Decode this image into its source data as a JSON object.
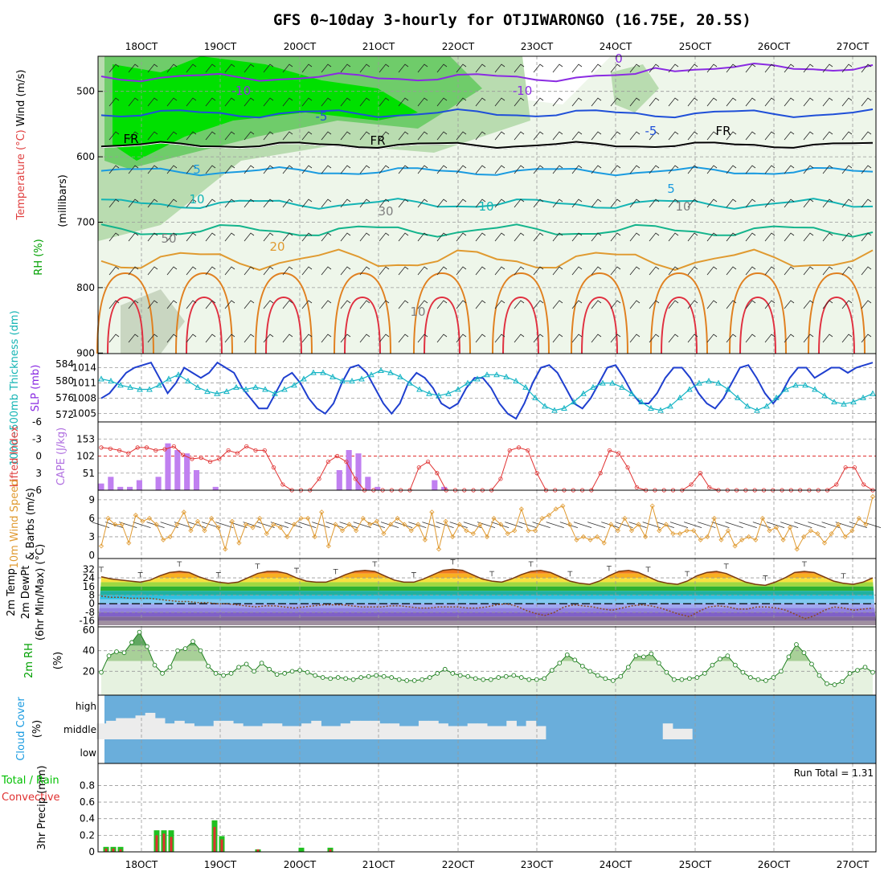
{
  "title": "GFS 0~10day 3-hourly for OTJIWARONGO (16.75E, 20.5S)",
  "x_dates": [
    "18OCT",
    "19OCT",
    "20OCT",
    "21OCT",
    "22OCT",
    "23OCT",
    "24OCT",
    "25OCT",
    "26OCT",
    "27OCT"
  ],
  "panels": {
    "upper": {
      "labels": [
        "Wind (m/s)",
        "Temperature (°C)",
        "RH (%)",
        "(millibars)"
      ],
      "label_colors": [
        "#000000",
        "#e04040",
        "#00a000",
        "#000000"
      ],
      "yticks": [
        "500",
        "600",
        "700",
        "800",
        "900"
      ],
      "contour_labels": [
        {
          "text": "-10",
          "color": "#8a2be2"
        },
        {
          "text": "-10",
          "color": "#8a2be2"
        },
        {
          "text": "-5",
          "color": "#1f4fd8"
        },
        {
          "text": "-5",
          "color": "#1f4fd8"
        },
        {
          "text": "FR",
          "color": "#000000"
        },
        {
          "text": "FR",
          "color": "#000000"
        },
        {
          "text": "FR",
          "color": "#000000"
        },
        {
          "text": "5",
          "color": "#1a9be0"
        },
        {
          "text": "5",
          "color": "#1a9be0"
        },
        {
          "text": "10",
          "color": "#14b4b4"
        },
        {
          "text": "10",
          "color": "#14b4b4"
        },
        {
          "text": "20",
          "color": "#e09a30"
        },
        {
          "text": "30",
          "color": "#808080"
        },
        {
          "text": "50",
          "color": "#808080"
        },
        {
          "text": "10",
          "color": "#808080"
        },
        {
          "text": "10",
          "color": "#808080"
        },
        {
          "text": "0",
          "color": "#8a2be2"
        }
      ]
    },
    "slp": {
      "labels": [
        "1000~500mb Thickness (dm)",
        "SLP (mb)"
      ],
      "label_colors": [
        "#14b4b4",
        "#8a2be2"
      ],
      "thick_ticks": [
        "584",
        "580",
        "576",
        "572"
      ],
      "slp_ticks": [
        "1014",
        "1011",
        "1008",
        "1005"
      ]
    },
    "li": {
      "labels": [
        "Lifted Index",
        "CAPE (J/kg)"
      ],
      "label_colors": [
        "#e04040",
        "#b070e0"
      ],
      "li_ticks": [
        "-6",
        "-3",
        "0",
        "3",
        "6"
      ],
      "cape_ticks": [
        "153",
        "102",
        "51"
      ]
    },
    "wind10": {
      "labels": [
        "10m Wind Speed",
        "& Barbs (m/s)"
      ],
      "label_colors": [
        "#e09a30",
        "#000000"
      ],
      "yticks": [
        "9",
        "6",
        "3",
        "0"
      ]
    },
    "temp2m": {
      "labels": [
        "2m Temp",
        "2m DewPt",
        "(6hr Min/Max) (°C)"
      ],
      "label_colors": [
        "#000000",
        "#000000",
        "#000000"
      ],
      "yticks": [
        "32",
        "24",
        "16",
        "8",
        "0",
        "-8",
        "-16"
      ]
    },
    "rh2m": {
      "labels": [
        "2m RH",
        "(%)"
      ],
      "label_colors": [
        "#00a000",
        "#000000"
      ],
      "yticks": [
        "60",
        "40",
        "20"
      ]
    },
    "cloud": {
      "labels": [
        "Cloud Cover",
        "(%)"
      ],
      "label_colors": [
        "#1a9be0",
        "#000000"
      ],
      "level_ticks": [
        "high",
        "middle",
        "low"
      ]
    },
    "precip": {
      "labels": [
        "Total / Rain",
        "Convective",
        "3hr Precip (mm)"
      ],
      "label_colors": [
        "#00c000",
        "#e03030",
        "#000000"
      ],
      "yticks": [
        "0.8",
        "0.6",
        "0.4",
        "0.2",
        "0"
      ],
      "run_total": "Run Total = 1.31"
    }
  },
  "chart_data": {
    "type": "meteogram",
    "title": "GFS 0~10day 3-hourly for OTJIWARONGO (16.75E, 20.5S)",
    "x_start": "17OCT 12Z",
    "step_hours": 3,
    "slp_mb": [
      1008,
      1009,
      1011,
      1013,
      1014,
      1014.5,
      1015,
      1012,
      1009,
      1011,
      1014,
      1013,
      1012,
      1013,
      1015,
      1014,
      1013,
      1010,
      1008,
      1006,
      1006,
      1009,
      1012,
      1013,
      1011,
      1008,
      1006,
      1005,
      1007,
      1011,
      1014,
      1014.5,
      1013,
      1010,
      1007,
      1005,
      1007,
      1011,
      1013,
      1012,
      1010,
      1007,
      1006,
      1007,
      1010,
      1012,
      1012,
      1010,
      1007,
      1005,
      1004,
      1007,
      1011,
      1014,
      1014.5,
      1013,
      1010,
      1007,
      1006,
      1008,
      1011,
      1014,
      1014.5,
      1012,
      1009,
      1007,
      1007,
      1009,
      1012,
      1014,
      1014,
      1012,
      1009,
      1007,
      1006,
      1008,
      1011,
      1014,
      1014.5,
      1012,
      1009,
      1007,
      1009,
      1012,
      1014,
      1014,
      1012,
      1013,
      1014,
      1014,
      1013,
      1014,
      1014.5,
      1015
    ],
    "thickness_dm": [
      580.5,
      580,
      579,
      578.5,
      578,
      578,
      579,
      580.5,
      581.5,
      580,
      578.5,
      577.5,
      577,
      577.5,
      578.5,
      578,
      578.5,
      578,
      577,
      578,
      579,
      580.5,
      582,
      582,
      581,
      580,
      580,
      580.5,
      581.5,
      582.5,
      582,
      581,
      579.5,
      578,
      577,
      576.5,
      577,
      578,
      579.5,
      580.5,
      581.5,
      581.5,
      581,
      580,
      578.5,
      576,
      574,
      573,
      573.5,
      575,
      577,
      578.5,
      579.5,
      579.5,
      578.5,
      577,
      575,
      573.5,
      573,
      574,
      576,
      578,
      579.5,
      580,
      579.5,
      578,
      576,
      574,
      573,
      574,
      576,
      578,
      579,
      579,
      578,
      576.5,
      575,
      574.5,
      575,
      576,
      577
    ],
    "cape": [
      20,
      40,
      10,
      10,
      30,
      0,
      40,
      140,
      120,
      110,
      60,
      0,
      10,
      0,
      0,
      0,
      0,
      0,
      0,
      0,
      0,
      0,
      0,
      0,
      0,
      60,
      120,
      110,
      40,
      10,
      0,
      0,
      0,
      0,
      0,
      30,
      10,
      0,
      0,
      0,
      0,
      0,
      0,
      0,
      0,
      0,
      0,
      0,
      0,
      0,
      0,
      0,
      0,
      0,
      0,
      0,
      0,
      0,
      0,
      0,
      0,
      0,
      0,
      0,
      0,
      0,
      0,
      0,
      0,
      0,
      0,
      0,
      0,
      0,
      0,
      0,
      0,
      0,
      0,
      0,
      0,
      0
    ],
    "lifted_index": [
      -1.5,
      -1.3,
      -1,
      -0.5,
      -1.5,
      -1.5,
      -1,
      -1.2,
      -1.7,
      -0.2,
      0.5,
      0.3,
      1,
      0.5,
      -1,
      -0.5,
      -1.7,
      -1,
      -1,
      2,
      5,
      6,
      6,
      6,
      4,
      1,
      0,
      1,
      4,
      6,
      6,
      6,
      6,
      6,
      6,
      2,
      1,
      3,
      6,
      6,
      6,
      6,
      6,
      6,
      4,
      -1,
      -1.5,
      -1,
      3,
      6,
      6,
      6,
      6,
      6,
      6,
      3,
      -1,
      -0.5,
      2,
      5.5,
      6,
      6,
      6,
      6,
      6,
      5,
      3,
      5.5,
      6,
      6,
      6,
      6,
      6,
      6,
      6,
      6,
      6,
      6,
      6,
      6,
      6,
      5,
      2,
      2,
      5,
      6
    ],
    "wind10_ms": [
      1.5,
      6,
      5,
      5,
      2,
      6.5,
      5.5,
      6,
      5,
      2.5,
      3,
      5,
      7,
      4,
      5.5,
      4,
      6,
      4.5,
      1,
      5.5,
      2,
      5,
      4.5,
      6,
      3.5,
      5,
      4.5,
      3,
      5,
      6,
      6,
      3,
      7,
      1.5,
      5,
      4,
      5,
      4,
      6,
      5,
      5.5,
      3.5,
      5,
      6,
      5,
      4,
      5,
      2.5,
      7,
      1,
      5.5,
      3,
      5,
      4,
      3.5,
      5,
      3,
      6,
      5,
      3.5,
      4,
      7.5,
      4,
      4,
      6,
      6.5,
      7.5,
      8,
      5,
      2.5,
      3,
      2.5,
      3,
      2,
      5,
      4,
      6,
      4,
      5,
      3,
      8,
      4,
      5,
      3.5,
      3.5,
      4,
      4,
      2.5,
      3,
      6,
      2.5,
      4,
      1.5,
      2.5,
      3,
      2.5,
      6,
      4,
      4.5,
      2.5,
      4.5,
      1,
      3,
      4,
      3.5,
      2,
      3.5,
      5,
      3,
      4,
      6,
      5,
      9.5
    ],
    "temp2m_c": [
      25,
      23,
      22,
      21,
      20,
      22,
      26,
      29,
      30,
      29,
      25,
      22,
      20,
      19,
      20,
      24,
      28,
      30,
      30,
      28,
      24,
      21,
      20,
      20,
      23,
      27,
      30,
      31,
      30,
      26,
      22,
      20,
      20,
      23,
      27,
      31,
      32,
      31,
      27,
      23,
      21,
      20,
      23,
      27,
      30,
      31,
      29,
      25,
      21,
      19,
      18,
      21,
      26,
      30,
      31,
      29,
      25,
      21,
      19,
      18,
      21,
      26,
      29,
      30,
      28,
      24,
      20,
      18,
      17,
      20,
      24,
      29,
      30,
      29,
      25,
      21,
      19,
      18,
      20,
      24
    ],
    "dewpt2m_c": [
      7,
      6,
      6,
      5,
      5,
      5,
      4,
      3,
      2,
      2,
      1,
      1,
      0,
      0,
      -1,
      -2,
      -3,
      -2,
      -2,
      -3,
      -4,
      -3,
      -2,
      -1,
      -1,
      -1,
      -2,
      -3,
      -3,
      -3,
      -2,
      -2,
      -3,
      -4,
      -4,
      -3,
      -3,
      -3,
      -4,
      -4,
      -3,
      -1,
      0,
      -2,
      -6,
      -9,
      -11,
      -8,
      -3,
      -1,
      -2,
      -3,
      -5,
      -6,
      -4,
      -2,
      -1,
      -2,
      -4,
      -7,
      -10,
      -12,
      -7,
      -3,
      -2,
      -3,
      -5,
      -5,
      -3,
      -3,
      -4,
      -6,
      -10,
      -14,
      -11,
      -6,
      -3,
      -4,
      -6,
      -5,
      -4
    ],
    "rh2m_pct": [
      19,
      35,
      39,
      38,
      48,
      58,
      44,
      26,
      18,
      24,
      40,
      42,
      49,
      40,
      25,
      18,
      16,
      18,
      24,
      27,
      20,
      28,
      22,
      17,
      18,
      20,
      21,
      19,
      16,
      14,
      13,
      14,
      13,
      12,
      14,
      15,
      16,
      15,
      14,
      12,
      11,
      11,
      12,
      14,
      18,
      22,
      18,
      16,
      15,
      13,
      12,
      12,
      14,
      15,
      16,
      14,
      12,
      12,
      13,
      21,
      28,
      36,
      31,
      25,
      20,
      16,
      13,
      11,
      15,
      24,
      35,
      34,
      37,
      28,
      19,
      12,
      12,
      13,
      14,
      18,
      26,
      32,
      35,
      26,
      19,
      14,
      12,
      11,
      14,
      20,
      34,
      46,
      38,
      27,
      16,
      8,
      7,
      10,
      18,
      21,
      24,
      19
    ],
    "cloud_mid_pct": [
      30,
      35,
      40,
      40,
      45,
      50,
      40,
      30,
      35,
      30,
      25,
      25,
      35,
      35,
      30,
      25,
      25,
      30,
      30,
      25,
      25,
      30,
      35,
      25,
      25,
      30,
      35,
      35,
      35,
      30,
      30,
      25,
      25,
      35,
      35,
      30,
      25,
      25,
      30,
      30,
      25,
      25,
      35,
      25,
      35,
      25,
      0,
      0,
      0,
      0,
      0,
      0,
      0,
      0,
      0,
      0,
      0,
      0,
      30,
      20,
      20,
      0,
      0,
      0,
      0,
      0,
      0,
      0,
      0,
      0,
      0,
      0,
      0,
      0,
      0,
      0,
      0,
      0,
      0,
      0
    ],
    "precip_total_mm": [
      0.06,
      0.06,
      0.06,
      0,
      0,
      0,
      0,
      0.26,
      0.26,
      0.26,
      0,
      0,
      0,
      0,
      0,
      0.38,
      0.19,
      0,
      0,
      0,
      0,
      0.03,
      0,
      0,
      0,
      0,
      0,
      0.05,
      0,
      0,
      0,
      0.05,
      0
    ],
    "precip_conv_mm": [
      0.04,
      0.04,
      0.03,
      0,
      0,
      0,
      0,
      0.2,
      0.22,
      0.18,
      0,
      0,
      0,
      0,
      0,
      0.3,
      0.15,
      0,
      0,
      0,
      0,
      0.03,
      0,
      0,
      0,
      0,
      0,
      0,
      0,
      0,
      0,
      0.03,
      0
    ],
    "run_total_mm": 1.31
  }
}
